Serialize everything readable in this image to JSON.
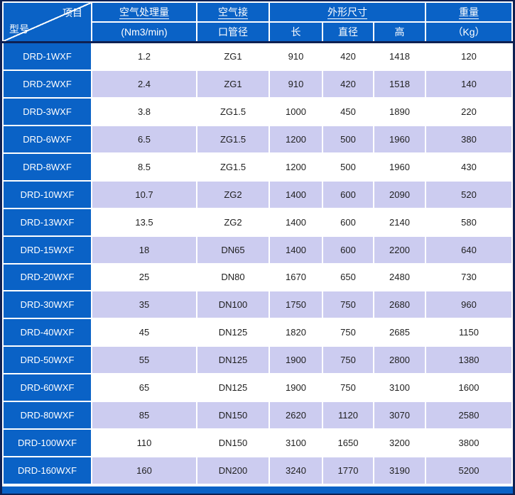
{
  "colors": {
    "header_blue": "#0A62C6",
    "row_alt_lavender": "#CCCCF0",
    "frame_navy": "#0E2052",
    "grid_white": "#FFFFFF",
    "text_dark": "#1F1F1F"
  },
  "header": {
    "corner_top_right": "项目",
    "corner_bottom_left": "型号",
    "capacity_line1": "空气处理量",
    "capacity_line2": "(Nm3/min)",
    "pipe_line1": "空气接",
    "pipe_line2": "口管径",
    "dims_label": "外形尺寸",
    "dims_sub": [
      "长",
      "直径",
      "高"
    ],
    "weight_line1": "重量",
    "weight_line2": "（Kg）"
  },
  "rows": [
    {
      "model": "DRD-1WXF",
      "capacity": "1.2",
      "pipe": "ZG1",
      "length": "910",
      "diameter": "420",
      "height": "1418",
      "weight": "120"
    },
    {
      "model": "DRD-2WXF",
      "capacity": "2.4",
      "pipe": "ZG1",
      "length": "910",
      "diameter": "420",
      "height": "1518",
      "weight": "140"
    },
    {
      "model": "DRD-3WXF",
      "capacity": "3.8",
      "pipe": "ZG1.5",
      "length": "1000",
      "diameter": "450",
      "height": "1890",
      "weight": "220"
    },
    {
      "model": "DRD-6WXF",
      "capacity": "6.5",
      "pipe": "ZG1.5",
      "length": "1200",
      "diameter": "500",
      "height": "1960",
      "weight": "380"
    },
    {
      "model": "DRD-8WXF",
      "capacity": "8.5",
      "pipe": "ZG1.5",
      "length": "1200",
      "diameter": "500",
      "height": "1960",
      "weight": "430"
    },
    {
      "model": "DRD-10WXF",
      "capacity": "10.7",
      "pipe": "ZG2",
      "length": "1400",
      "diameter": "600",
      "height": "2090",
      "weight": "520"
    },
    {
      "model": "DRD-13WXF",
      "capacity": "13.5",
      "pipe": "ZG2",
      "length": "1400",
      "diameter": "600",
      "height": "2140",
      "weight": "580"
    },
    {
      "model": "DRD-15WXF",
      "capacity": "18",
      "pipe": "DN65",
      "length": "1400",
      "diameter": "600",
      "height": "2200",
      "weight": "640"
    },
    {
      "model": "DRD-20WXF",
      "capacity": "25",
      "pipe": "DN80",
      "length": "1670",
      "diameter": "650",
      "height": "2480",
      "weight": "730"
    },
    {
      "model": "DRD-30WXF",
      "capacity": "35",
      "pipe": "DN100",
      "length": "1750",
      "diameter": "750",
      "height": "2680",
      "weight": "960"
    },
    {
      "model": "DRD-40WXF",
      "capacity": "45",
      "pipe": "DN125",
      "length": "1820",
      "diameter": "750",
      "height": "2685",
      "weight": "1150"
    },
    {
      "model": "DRD-50WXF",
      "capacity": "55",
      "pipe": "DN125",
      "length": "1900",
      "diameter": "750",
      "height": "2800",
      "weight": "1380"
    },
    {
      "model": "DRD-60WXF",
      "capacity": "65",
      "pipe": "DN125",
      "length": "1900",
      "diameter": "750",
      "height": "3100",
      "weight": "1600"
    },
    {
      "model": "DRD-80WXF",
      "capacity": "85",
      "pipe": "DN150",
      "length": "2620",
      "diameter": "1120",
      "height": "3070",
      "weight": "2580"
    },
    {
      "model": "DRD-100WXF",
      "capacity": "110",
      "pipe": "DN150",
      "length": "3100",
      "diameter": "1650",
      "height": "3200",
      "weight": "3800"
    },
    {
      "model": "DRD-160WXF",
      "capacity": "160",
      "pipe": "DN200",
      "length": "3240",
      "diameter": "1770",
      "height": "3190",
      "weight": "5200"
    }
  ]
}
